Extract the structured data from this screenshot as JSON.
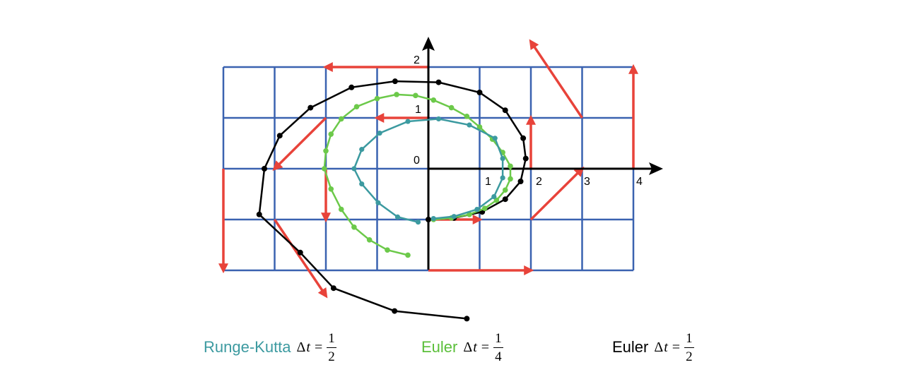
{
  "axes": {
    "x_ticks": [
      "1",
      "2",
      "3",
      "4"
    ],
    "y_ticks": [
      "1",
      "2"
    ],
    "origin_label": "0"
  },
  "colors": {
    "grid": "#3a62b0",
    "arrows": "#e8433a",
    "axes": "#000000",
    "runge_kutta": "#3c9aa0",
    "euler_quarter": "#6cc94a",
    "euler_half": "#000000"
  },
  "diagram_data": {
    "grid": {
      "x_range": [
        -4,
        4
      ],
      "y_range": [
        -2,
        2
      ],
      "cell": 1
    },
    "vector_field": [
      {
        "from": [
          0,
          2
        ],
        "to": [
          -2,
          2
        ]
      },
      {
        "from": [
          0,
          1
        ],
        "to": [
          -1,
          1
        ]
      },
      {
        "from": [
          -2,
          1
        ],
        "to": [
          -3,
          0
        ]
      },
      {
        "from": [
          -4,
          0
        ],
        "to": [
          -4,
          -2
        ]
      },
      {
        "from": [
          -2,
          0
        ],
        "to": [
          -2,
          -1
        ]
      },
      {
        "from": [
          -3,
          -1
        ],
        "to": [
          -2,
          -2.5
        ]
      },
      {
        "from": [
          0,
          -1
        ],
        "to": [
          1,
          -1
        ]
      },
      {
        "from": [
          0,
          -2
        ],
        "to": [
          2,
          -2
        ]
      },
      {
        "from": [
          2,
          -1
        ],
        "to": [
          3,
          0
        ]
      },
      {
        "from": [
          2,
          0
        ],
        "to": [
          2,
          1
        ]
      },
      {
        "from": [
          3,
          1
        ],
        "to": [
          2,
          2.5
        ]
      },
      {
        "from": [
          4,
          0
        ],
        "to": [
          4,
          2
        ]
      }
    ],
    "trajectories": [
      {
        "id": "euler_half",
        "points": [
          [
            0.75,
            -2.95
          ],
          [
            -0.66,
            -2.8
          ],
          [
            -1.85,
            -2.35
          ],
          [
            -2.5,
            -1.65
          ],
          [
            -3.3,
            -0.9
          ],
          [
            -3.2,
            0
          ],
          [
            -2.9,
            0.65
          ],
          [
            -2.3,
            1.2
          ],
          [
            -1.5,
            1.6
          ],
          [
            -0.65,
            1.72
          ],
          [
            0.2,
            1.7
          ],
          [
            1,
            1.5
          ],
          [
            1.5,
            1.15
          ],
          [
            1.85,
            0.6
          ],
          [
            1.9,
            0.2
          ],
          [
            1.8,
            -0.25
          ],
          [
            1.5,
            -0.6
          ],
          [
            1.05,
            -0.85
          ],
          [
            0.5,
            -0.97
          ],
          [
            0,
            -1
          ]
        ]
      },
      {
        "id": "euler_quarter",
        "points": [
          [
            -0.4,
            -1.7
          ],
          [
            -0.8,
            -1.6
          ],
          [
            -1.15,
            -1.4
          ],
          [
            -1.45,
            -1.15
          ],
          [
            -1.7,
            -0.8
          ],
          [
            -1.9,
            -0.4
          ],
          [
            -2.03,
            0
          ],
          [
            -2,
            0.35
          ],
          [
            -1.9,
            0.68
          ],
          [
            -1.7,
            0.98
          ],
          [
            -1.4,
            1.22
          ],
          [
            -1,
            1.38
          ],
          [
            -0.62,
            1.46
          ],
          [
            -0.25,
            1.44
          ],
          [
            0.1,
            1.35
          ],
          [
            0.45,
            1.2
          ],
          [
            0.75,
            1.03
          ],
          [
            1,
            0.82
          ],
          [
            1.25,
            0.58
          ],
          [
            1.45,
            0.32
          ],
          [
            1.6,
            0.05
          ],
          [
            1.6,
            -0.2
          ],
          [
            1.5,
            -0.42
          ],
          [
            1.33,
            -0.62
          ],
          [
            1.1,
            -0.78
          ],
          [
            0.8,
            -0.9
          ],
          [
            0.45,
            -0.97
          ],
          [
            0.1,
            -1
          ]
        ]
      },
      {
        "id": "runge_kutta",
        "points": [
          [
            -0.2,
            -1.05
          ],
          [
            -0.6,
            -0.95
          ],
          [
            -0.98,
            -0.67
          ],
          [
            -1.3,
            -0.3
          ],
          [
            -1.45,
            0
          ],
          [
            -1.3,
            0.38
          ],
          [
            -0.95,
            0.7
          ],
          [
            -0.4,
            0.93
          ],
          [
            0.2,
            0.98
          ],
          [
            0.8,
            0.86
          ],
          [
            1.3,
            0.6
          ],
          [
            1.45,
            0.2
          ],
          [
            1.45,
            -0.18
          ],
          [
            1.28,
            -0.55
          ],
          [
            0.95,
            -0.8
          ],
          [
            0.5,
            -0.94
          ],
          [
            0.1,
            -0.98
          ]
        ]
      }
    ]
  },
  "legend": [
    {
      "label": "Runge-Kutta",
      "delta": "Δ",
      "var": "t",
      "eq": "=",
      "num": "1",
      "den": "2",
      "color": "#3c9aa0"
    },
    {
      "label": "Euler",
      "delta": "Δ",
      "var": "t",
      "eq": "=",
      "num": "1",
      "den": "4",
      "color": "#5bbf3a"
    },
    {
      "label": "Euler",
      "delta": "Δ",
      "var": "t",
      "eq": "=",
      "num": "1",
      "den": "2",
      "color": "#000000"
    }
  ]
}
